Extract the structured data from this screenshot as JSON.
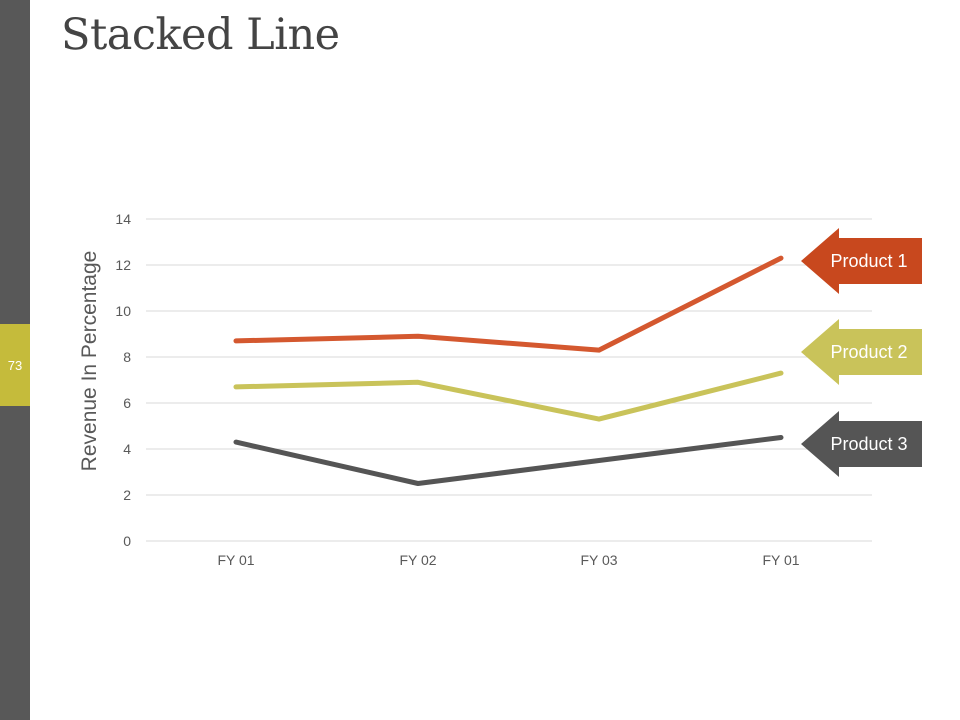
{
  "slide": {
    "title": "Stacked Line",
    "page_number": "73"
  },
  "colors": {
    "sidebar": "#585858",
    "page_badge": "#c5bb3b",
    "grid": "#d9d9d9",
    "tick_text": "#595959"
  },
  "chart_data": {
    "type": "line",
    "title": "Stacked Line",
    "categories": [
      "FY 01",
      "FY 02",
      "FY 03",
      "FY 01"
    ],
    "xlabel": "",
    "ylabel": "Revenue In Percentage",
    "ylim": [
      0,
      14
    ],
    "yticks": [
      0,
      2,
      4,
      6,
      8,
      10,
      12,
      14
    ],
    "grid": true,
    "legend": "right, arrow callouts",
    "series": [
      {
        "name": "Product 1",
        "color": "#d4582f",
        "label_color": "#c8481e",
        "values": [
          8.7,
          8.9,
          8.3,
          12.3
        ]
      },
      {
        "name": "Product 2",
        "color": "#c9c35a",
        "label_color": "#c9c35a",
        "values": [
          6.7,
          6.9,
          5.3,
          7.3
        ]
      },
      {
        "name": "Product 3",
        "color": "#555555",
        "label_color": "#555555",
        "values": [
          4.3,
          2.5,
          3.5,
          4.5
        ]
      }
    ]
  }
}
